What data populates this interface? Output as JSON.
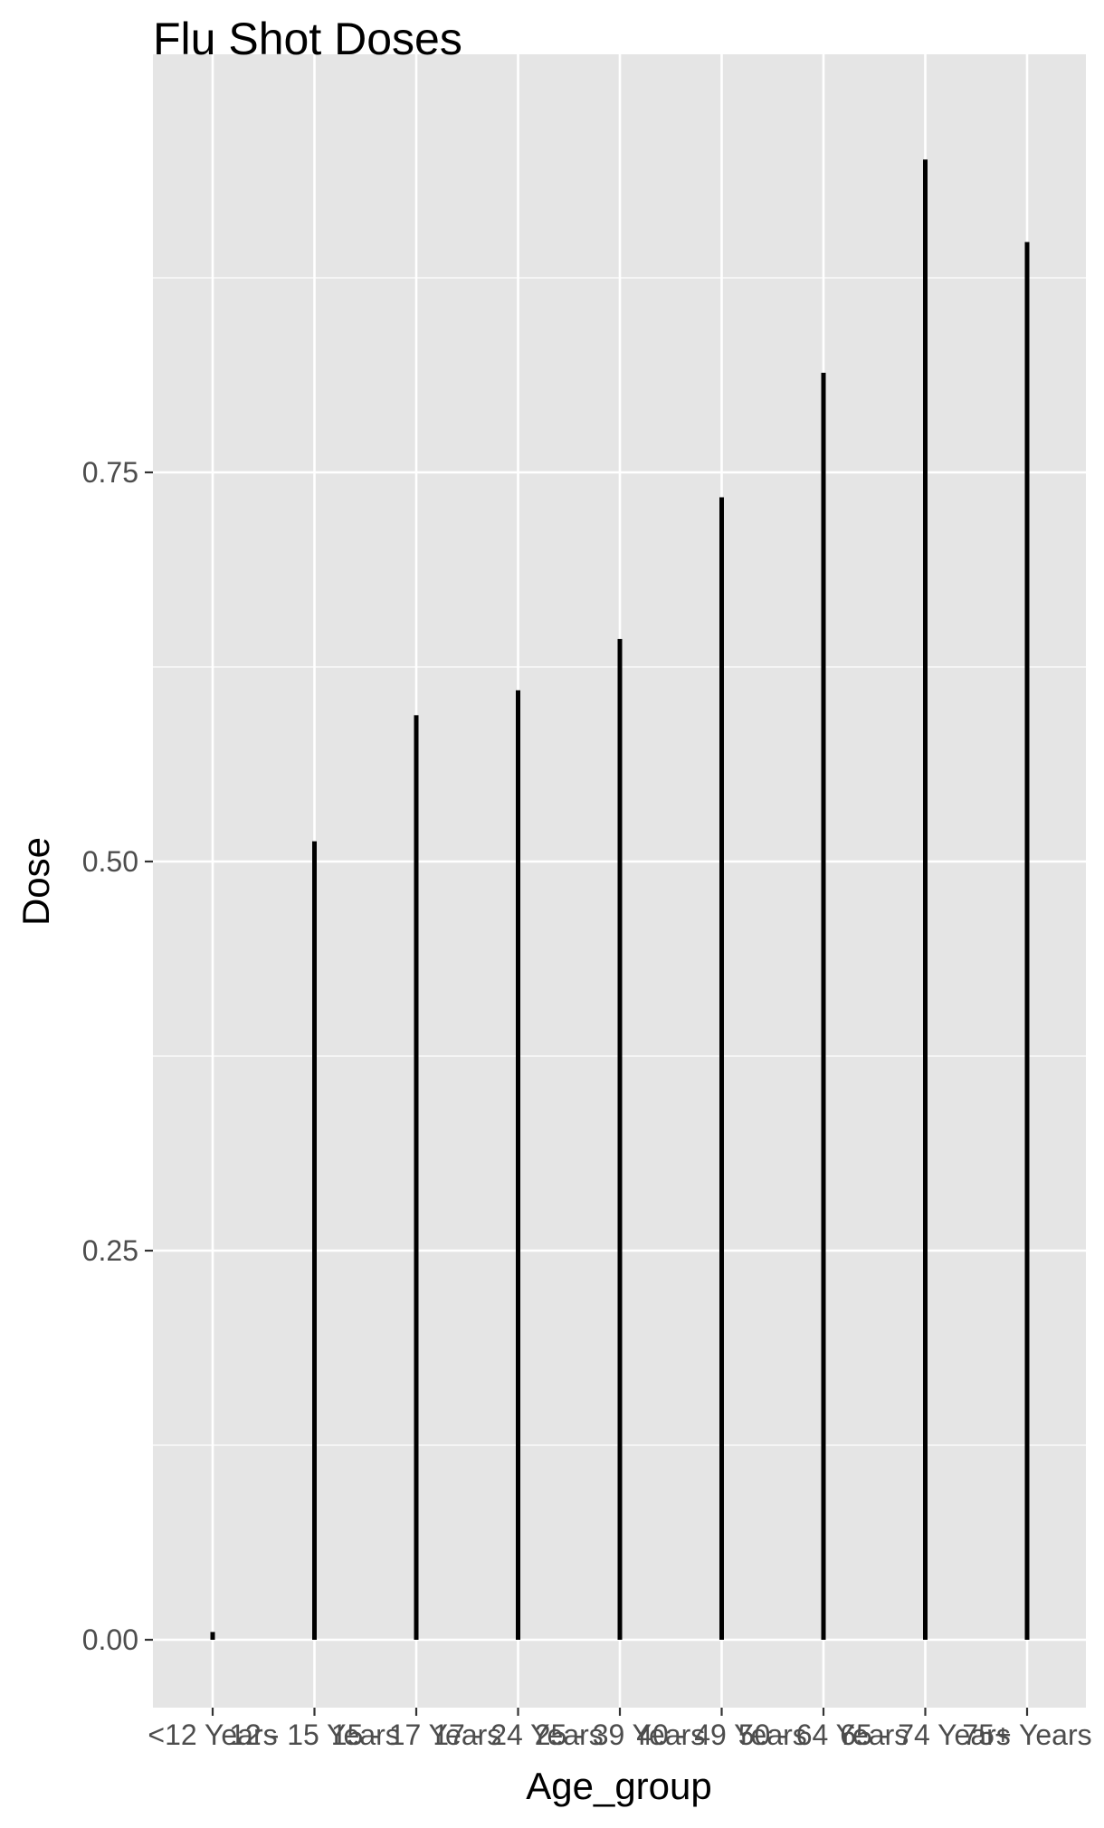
{
  "chart_data": {
    "type": "bar",
    "title": "Flu Shot Doses",
    "xlabel": "Age_group",
    "ylabel": "Dose",
    "categories": [
      "<12 Years",
      "12 - 15 Years",
      "15 - 17 Years",
      "17 - 24 Years",
      "25 - 39 Years",
      "40 - 49 Years",
      "50 - 64 Years",
      "65 - 74 Years",
      "75+ Years"
    ],
    "values": [
      0.005,
      0.513,
      0.594,
      0.61,
      0.643,
      0.734,
      0.814,
      0.951,
      0.898
    ],
    "ylim": [
      -0.046,
      1.0
    ],
    "yticks": [
      0.0,
      0.25,
      0.5,
      0.75
    ],
    "ytick_labels": [
      "0.00",
      "0.25",
      "0.50",
      "0.75"
    ],
    "grid": true,
    "legend": "none",
    "colors": {
      "panel": "#e5e5e5",
      "grid": "#ffffff",
      "bar": "#000000",
      "tick_text": "#4d4d4d"
    }
  }
}
